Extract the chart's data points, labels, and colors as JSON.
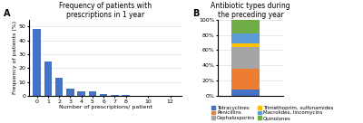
{
  "title_a": "Frequency of patients with\nprescriptions in 1 year",
  "xlabel_a": "Number of prescriptions/ patient",
  "ylabel_a": "Frequency of patients (%)",
  "bar_x": [
    0,
    1,
    2,
    3,
    4,
    5,
    6,
    7,
    8,
    10,
    12
  ],
  "bar_heights": [
    48,
    25,
    13,
    5,
    3.5,
    3,
    1.5,
    0.4,
    0.8,
    0,
    0
  ],
  "bar_color": "#4472C4",
  "ylim_a": [
    0,
    55
  ],
  "yticks_a": [
    0,
    10,
    20,
    30,
    40,
    50
  ],
  "title_b": "Antibiotic types during\nthe preceding year",
  "segments": [
    {
      "label": "Tetracyclines",
      "value": 8,
      "color": "#4472C4"
    },
    {
      "label": "Penicillins",
      "value": 28,
      "color": "#ED7D31"
    },
    {
      "label": "Cephalosporins",
      "value": 28,
      "color": "#A5A5A5"
    },
    {
      "label": "Trimethoprim, sulfonamides",
      "value": 5,
      "color": "#FFC000"
    },
    {
      "label": "Macrolides, lincomycins",
      "value": 13,
      "color": "#5B9BD5"
    },
    {
      "label": "Quinolones",
      "value": 18,
      "color": "#70AD47"
    }
  ],
  "yticks_b": [
    0,
    20,
    40,
    60,
    80,
    100
  ],
  "yticklabels_b": [
    "0%",
    "20%",
    "40%",
    "60%",
    "80%",
    "100%"
  ],
  "label_a": "A",
  "label_b": "B",
  "background_color": "#FFFFFF",
  "grid_color": "#D9D9D9",
  "title_fontsize": 5.5,
  "axis_fontsize": 4.5,
  "tick_fontsize": 4.5,
  "legend_fontsize": 4.0
}
